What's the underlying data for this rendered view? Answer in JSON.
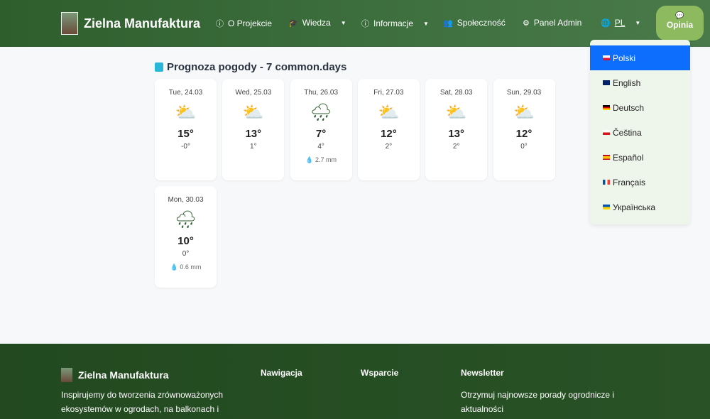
{
  "nav": {
    "brand": "Zielna Manufaktura",
    "items": [
      {
        "label": "O Projekcie",
        "icon": "info-icon"
      },
      {
        "label": "Wiedza",
        "icon": "graduation-cap-icon",
        "dropdown": true
      },
      {
        "label": "Informacje",
        "icon": "info-icon",
        "dropdown": true
      },
      {
        "label": "Społeczność",
        "icon": "users-icon"
      },
      {
        "label": "Panel Admin",
        "icon": "gear-icon"
      }
    ],
    "lang": "PL",
    "feedback": "Opinia"
  },
  "languages": [
    {
      "label": "Polski",
      "active": true
    },
    {
      "label": "English"
    },
    {
      "label": "Deutsch"
    },
    {
      "label": "Čeština"
    },
    {
      "label": "Español"
    },
    {
      "label": "Français"
    },
    {
      "label": "Українська"
    }
  ],
  "forecast": {
    "title": "Prognoza pogody - 7 common.days",
    "days": [
      {
        "date": "Tue, 24.03",
        "icon": "sun-cloud-icon",
        "high": "15°",
        "low": "-0°",
        "precip": ""
      },
      {
        "date": "Wed, 25.03",
        "icon": "sun-cloud-icon",
        "high": "13°",
        "low": "1°",
        "precip": ""
      },
      {
        "date": "Thu, 26.03",
        "icon": "rain-cloud-icon",
        "high": "7°",
        "low": "4°",
        "precip": "2.7 mm"
      },
      {
        "date": "Fri, 27.03",
        "icon": "sun-cloud-icon",
        "high": "12°",
        "low": "2°",
        "precip": ""
      },
      {
        "date": "Sat, 28.03",
        "icon": "sun-cloud-icon",
        "high": "13°",
        "low": "2°",
        "precip": ""
      },
      {
        "date": "Sun, 29.03",
        "icon": "sun-cloud-icon",
        "high": "12°",
        "low": "0°",
        "precip": ""
      },
      {
        "date": "Mon, 30.03",
        "icon": "rain-cloud-icon",
        "high": "10°",
        "low": "0°",
        "precip": "0.6 mm"
      }
    ]
  },
  "footer": {
    "brand": "Zielna Manufaktura",
    "description": "Inspirujemy do tworzenia zrównoważonych ekosystemów w ogrodach, na balkonach i tarasach.",
    "nav_title": "Nawigacja",
    "support_title": "Wsparcie",
    "newsletter_title": "Newsletter",
    "newsletter_text": "Otrzymuj najnowsze porady ogrodnicze i aktualności"
  },
  "colors": {
    "nav": "#3f7040",
    "accent": "#0d6efd",
    "sun": "#29b6d9",
    "rain": "#2e5e2c",
    "footer": "#22491f"
  }
}
